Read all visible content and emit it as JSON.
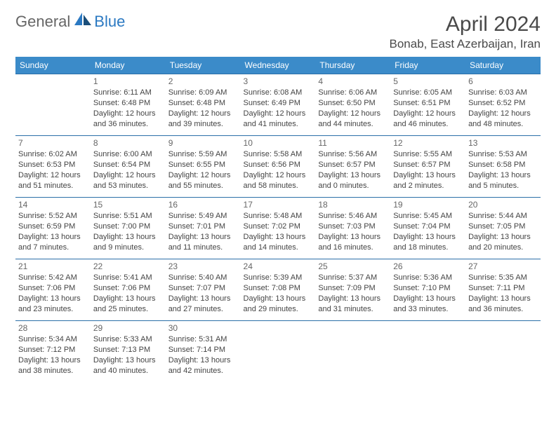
{
  "brand": {
    "part1": "General",
    "part2": "Blue"
  },
  "title": "April 2024",
  "location": "Bonab, East Azerbaijan, Iran",
  "day_headers": [
    "Sunday",
    "Monday",
    "Tuesday",
    "Wednesday",
    "Thursday",
    "Friday",
    "Saturday"
  ],
  "colors": {
    "header_bg": "#3b8bc9",
    "header_text": "#ffffff",
    "cell_border": "#2b6fa8",
    "text": "#444444",
    "title_text": "#4a4a4a",
    "brand_gray": "#666666",
    "brand_blue": "#2b79c2"
  },
  "weeks": [
    [
      null,
      {
        "n": "1",
        "sr": "Sunrise: 6:11 AM",
        "ss": "Sunset: 6:48 PM",
        "dl": "Daylight: 12 hours and 36 minutes."
      },
      {
        "n": "2",
        "sr": "Sunrise: 6:09 AM",
        "ss": "Sunset: 6:48 PM",
        "dl": "Daylight: 12 hours and 39 minutes."
      },
      {
        "n": "3",
        "sr": "Sunrise: 6:08 AM",
        "ss": "Sunset: 6:49 PM",
        "dl": "Daylight: 12 hours and 41 minutes."
      },
      {
        "n": "4",
        "sr": "Sunrise: 6:06 AM",
        "ss": "Sunset: 6:50 PM",
        "dl": "Daylight: 12 hours and 44 minutes."
      },
      {
        "n": "5",
        "sr": "Sunrise: 6:05 AM",
        "ss": "Sunset: 6:51 PM",
        "dl": "Daylight: 12 hours and 46 minutes."
      },
      {
        "n": "6",
        "sr": "Sunrise: 6:03 AM",
        "ss": "Sunset: 6:52 PM",
        "dl": "Daylight: 12 hours and 48 minutes."
      }
    ],
    [
      {
        "n": "7",
        "sr": "Sunrise: 6:02 AM",
        "ss": "Sunset: 6:53 PM",
        "dl": "Daylight: 12 hours and 51 minutes."
      },
      {
        "n": "8",
        "sr": "Sunrise: 6:00 AM",
        "ss": "Sunset: 6:54 PM",
        "dl": "Daylight: 12 hours and 53 minutes."
      },
      {
        "n": "9",
        "sr": "Sunrise: 5:59 AM",
        "ss": "Sunset: 6:55 PM",
        "dl": "Daylight: 12 hours and 55 minutes."
      },
      {
        "n": "10",
        "sr": "Sunrise: 5:58 AM",
        "ss": "Sunset: 6:56 PM",
        "dl": "Daylight: 12 hours and 58 minutes."
      },
      {
        "n": "11",
        "sr": "Sunrise: 5:56 AM",
        "ss": "Sunset: 6:57 PM",
        "dl": "Daylight: 13 hours and 0 minutes."
      },
      {
        "n": "12",
        "sr": "Sunrise: 5:55 AM",
        "ss": "Sunset: 6:57 PM",
        "dl": "Daylight: 13 hours and 2 minutes."
      },
      {
        "n": "13",
        "sr": "Sunrise: 5:53 AM",
        "ss": "Sunset: 6:58 PM",
        "dl": "Daylight: 13 hours and 5 minutes."
      }
    ],
    [
      {
        "n": "14",
        "sr": "Sunrise: 5:52 AM",
        "ss": "Sunset: 6:59 PM",
        "dl": "Daylight: 13 hours and 7 minutes."
      },
      {
        "n": "15",
        "sr": "Sunrise: 5:51 AM",
        "ss": "Sunset: 7:00 PM",
        "dl": "Daylight: 13 hours and 9 minutes."
      },
      {
        "n": "16",
        "sr": "Sunrise: 5:49 AM",
        "ss": "Sunset: 7:01 PM",
        "dl": "Daylight: 13 hours and 11 minutes."
      },
      {
        "n": "17",
        "sr": "Sunrise: 5:48 AM",
        "ss": "Sunset: 7:02 PM",
        "dl": "Daylight: 13 hours and 14 minutes."
      },
      {
        "n": "18",
        "sr": "Sunrise: 5:46 AM",
        "ss": "Sunset: 7:03 PM",
        "dl": "Daylight: 13 hours and 16 minutes."
      },
      {
        "n": "19",
        "sr": "Sunrise: 5:45 AM",
        "ss": "Sunset: 7:04 PM",
        "dl": "Daylight: 13 hours and 18 minutes."
      },
      {
        "n": "20",
        "sr": "Sunrise: 5:44 AM",
        "ss": "Sunset: 7:05 PM",
        "dl": "Daylight: 13 hours and 20 minutes."
      }
    ],
    [
      {
        "n": "21",
        "sr": "Sunrise: 5:42 AM",
        "ss": "Sunset: 7:06 PM",
        "dl": "Daylight: 13 hours and 23 minutes."
      },
      {
        "n": "22",
        "sr": "Sunrise: 5:41 AM",
        "ss": "Sunset: 7:06 PM",
        "dl": "Daylight: 13 hours and 25 minutes."
      },
      {
        "n": "23",
        "sr": "Sunrise: 5:40 AM",
        "ss": "Sunset: 7:07 PM",
        "dl": "Daylight: 13 hours and 27 minutes."
      },
      {
        "n": "24",
        "sr": "Sunrise: 5:39 AM",
        "ss": "Sunset: 7:08 PM",
        "dl": "Daylight: 13 hours and 29 minutes."
      },
      {
        "n": "25",
        "sr": "Sunrise: 5:37 AM",
        "ss": "Sunset: 7:09 PM",
        "dl": "Daylight: 13 hours and 31 minutes."
      },
      {
        "n": "26",
        "sr": "Sunrise: 5:36 AM",
        "ss": "Sunset: 7:10 PM",
        "dl": "Daylight: 13 hours and 33 minutes."
      },
      {
        "n": "27",
        "sr": "Sunrise: 5:35 AM",
        "ss": "Sunset: 7:11 PM",
        "dl": "Daylight: 13 hours and 36 minutes."
      }
    ],
    [
      {
        "n": "28",
        "sr": "Sunrise: 5:34 AM",
        "ss": "Sunset: 7:12 PM",
        "dl": "Daylight: 13 hours and 38 minutes."
      },
      {
        "n": "29",
        "sr": "Sunrise: 5:33 AM",
        "ss": "Sunset: 7:13 PM",
        "dl": "Daylight: 13 hours and 40 minutes."
      },
      {
        "n": "30",
        "sr": "Sunrise: 5:31 AM",
        "ss": "Sunset: 7:14 PM",
        "dl": "Daylight: 13 hours and 42 minutes."
      },
      null,
      null,
      null,
      null
    ]
  ]
}
